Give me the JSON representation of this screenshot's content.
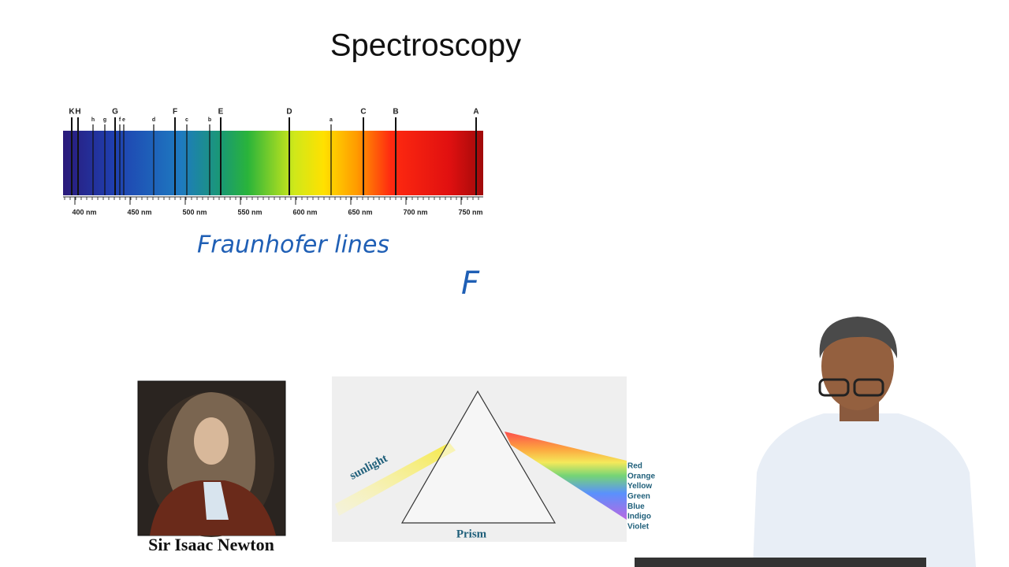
{
  "title": "Spectroscopy",
  "spectrum": {
    "line_labels": [
      "K",
      "H",
      "h",
      "g",
      "G",
      "f",
      "e",
      "d",
      "F",
      "c",
      "b",
      "E",
      "D",
      "a",
      "C",
      "B",
      "A"
    ],
    "wavelength_labels": [
      "400 nm",
      "450 nm",
      "500 nm",
      "550 nm",
      "600 nm",
      "650 nm",
      "700 nm",
      "750 nm"
    ]
  },
  "handwriting": [
    "Fraunhofer lines",
    "F"
  ],
  "portrait_caption": "Sir Isaac Newton",
  "prism": {
    "incoming": "sunlight",
    "label": "Prism",
    "colors": [
      "Red",
      "Orange",
      "Yellow",
      "Green",
      "Blue",
      "Indigo",
      "Violet"
    ]
  }
}
